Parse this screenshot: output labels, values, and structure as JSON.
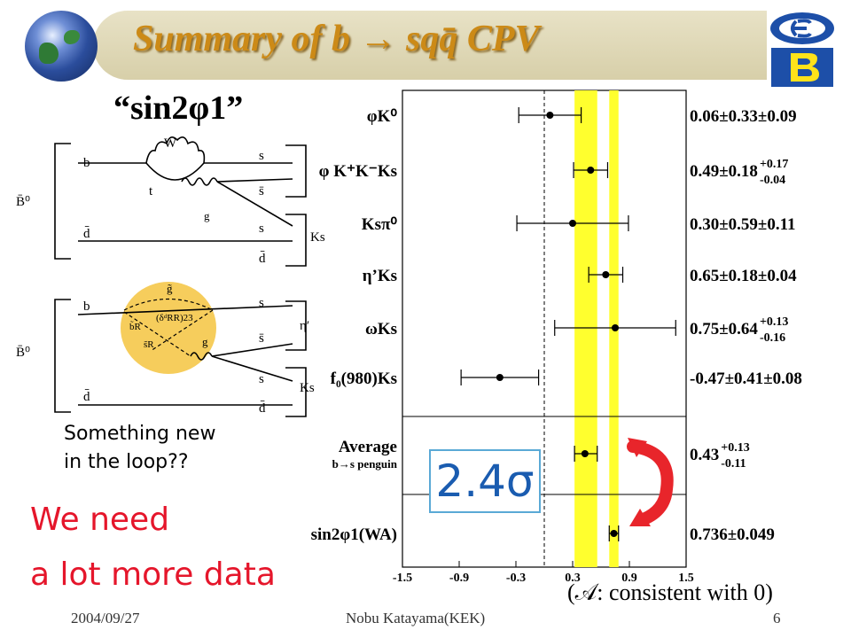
{
  "slide": {
    "title": "Summary of b → sqq̄ CPV",
    "quote_title": "“sin2φ1”",
    "note_line1": "Something new",
    "note_line2": "in the loop??",
    "need_line1": "We need",
    "need_line2": "a lot more data",
    "consistent_text": "(𝒜: consistent with 0)",
    "sigma_label": "2.4σ",
    "footer": {
      "date": "2004/09/27",
      "author": "Nobu Katayama(KEK)",
      "page": "6"
    },
    "colors": {
      "title": "#cc8a17",
      "red_text": "#e5162b",
      "yellow_band": "#ffff2e",
      "arrow": "#e8252b",
      "sigma_text": "#1a5cb0"
    }
  },
  "diagram_top": {
    "boson_label": "W",
    "quark_label_t": "t",
    "gluon_label": "g",
    "left_b": "b",
    "left_d": "d̄",
    "meson_label": "B̄⁰",
    "right_s1": "s",
    "right_sbar": "s̄",
    "right_s2": "s",
    "right_d": "d̄",
    "ks_label": "Ks"
  },
  "diagram_bottom": {
    "gluino_label": "g̃",
    "left_b": "b",
    "left_d": "d̄",
    "meson_label": "B̄⁰",
    "squark_bR": "b̃R",
    "squark_sR": "s̃R",
    "delta_label": "(δᵈRR)23",
    "gluon_label": "g",
    "right_s1": "s",
    "right_sbar": "s̄",
    "right_s2": "s",
    "right_d": "d̄",
    "eta_label": "η′",
    "ks_label": "Ks"
  },
  "chart_data": {
    "type": "scatter",
    "title": "",
    "xlim": [
      -1.5,
      1.5
    ],
    "xticks": [
      "-1.5",
      "-0.9",
      "-0.3",
      "0.3",
      "0.9",
      "1.5"
    ],
    "xtick_values": [
      -1.5,
      -0.9,
      -0.3,
      0.3,
      0.9,
      1.5
    ],
    "reference_line_x": 0,
    "bands": [
      {
        "center": 0.43,
        "minus": 0.11,
        "plus": 0.13
      },
      {
        "center": 0.736,
        "minus": 0.049,
        "plus": 0.049
      }
    ],
    "points": [
      {
        "label": "φK⁰",
        "value": 0.06,
        "stat_minus": 0.33,
        "stat_plus": 0.33,
        "syst": 0.09,
        "result_text": "0.06±0.33±0.09"
      },
      {
        "label": "φ K⁺K⁻Ks",
        "value": 0.49,
        "stat_minus": 0.18,
        "stat_plus": 0.18,
        "syst_plus": 0.17,
        "syst_minus": 0.04,
        "result_text": "0.49±0.18",
        "result_sup": "+0.17",
        "result_sub": "-0.04"
      },
      {
        "label": "Ksπ⁰",
        "value": 0.3,
        "stat_minus": 0.59,
        "stat_plus": 0.59,
        "syst": 0.11,
        "result_text": "0.30±0.59±0.11"
      },
      {
        "label": "η’Ks",
        "value": 0.65,
        "stat_minus": 0.18,
        "stat_plus": 0.18,
        "syst": 0.04,
        "result_text": "0.65±0.18±0.04"
      },
      {
        "label": "ωKs",
        "value": 0.75,
        "stat_minus": 0.64,
        "stat_plus": 0.64,
        "syst_plus": 0.13,
        "syst_minus": 0.16,
        "result_text": "0.75±0.64",
        "result_sup": "+0.13",
        "result_sub": "-0.16"
      },
      {
        "label": "f₀(980)Ks",
        "value": -0.47,
        "stat_minus": 0.41,
        "stat_plus": 0.41,
        "syst": 0.08,
        "result_text": "-0.47±0.41±0.08"
      },
      {
        "label": "Average",
        "sublabel": "b→s penguin",
        "value": 0.43,
        "stat_minus": 0.11,
        "stat_plus": 0.13,
        "result_text": "0.43",
        "result_sup": "+0.13",
        "result_sub": "-0.11"
      },
      {
        "label": "sin2φ1(WA)",
        "value": 0.736,
        "stat_minus": 0.049,
        "stat_plus": 0.049,
        "result_text": "0.736±0.049"
      }
    ]
  }
}
